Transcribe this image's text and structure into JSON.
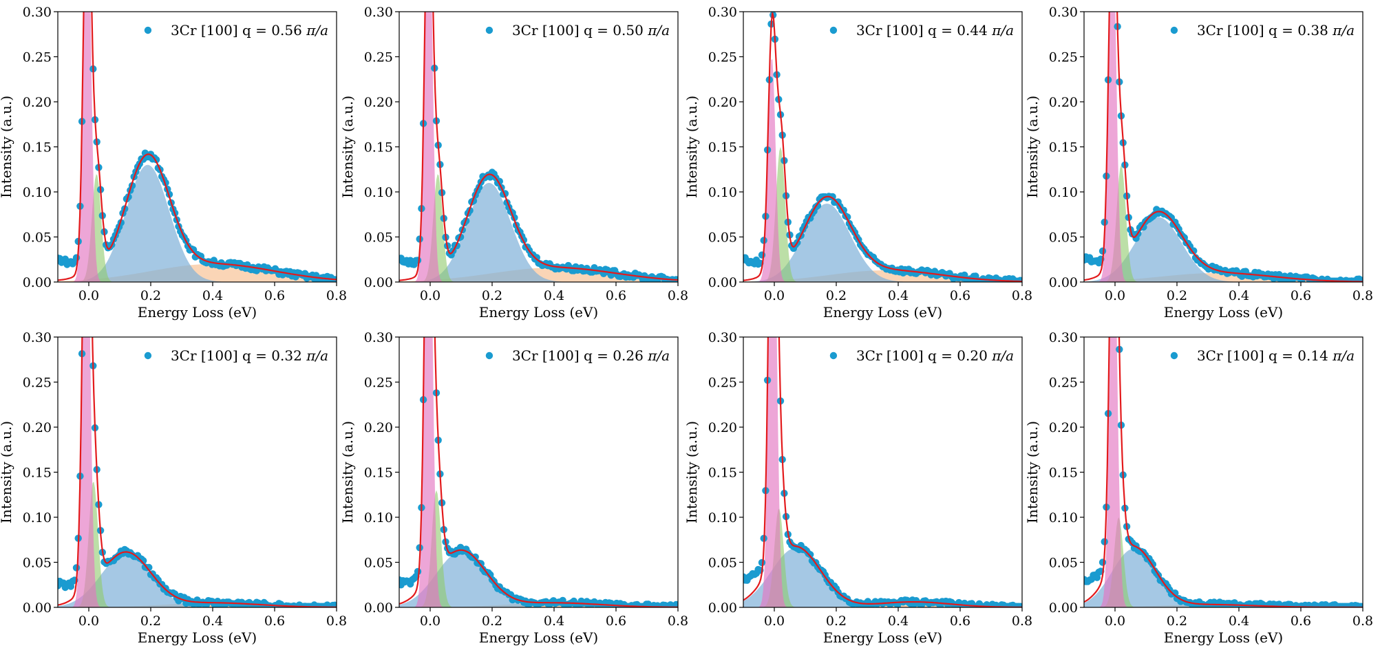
{
  "figure": {
    "xlabel": "Energy Loss (eV)",
    "ylabel": "Intensity (a.u.)",
    "xlim": [
      -0.1,
      0.8
    ],
    "ylim": [
      0.0,
      0.3
    ],
    "xticks": [
      "0.0",
      "0.2",
      "0.4",
      "0.6",
      "0.8"
    ],
    "yticks": [
      "0.00",
      "0.05",
      "0.10",
      "0.15",
      "0.20",
      "0.25",
      "0.30"
    ],
    "legend_placement": "top-right",
    "grid": false
  },
  "colors": {
    "data_points": "#1a9bd0",
    "fit_line": "#e31a1c",
    "component_elastic": "#e377c2",
    "component_phonon": "#8fca6d",
    "component_magnon": "#7fb0d8",
    "component_continuum": "#f5b27a"
  },
  "chart_data": [
    {
      "type": "scatter",
      "panel": 1,
      "legend": {
        "prefix": "3Cr [100] q = ",
        "value": "0.56",
        "unit": "π/a"
      },
      "peak": {
        "amplitude": 0.13,
        "center": 0.19,
        "width": 0.07,
        "height_at_peak": 0.143
      },
      "continuum": {
        "amplitude": 0.02,
        "center": 0.4,
        "width": 0.2
      },
      "elastic": {
        "amplitude": 0.45,
        "center": -0.005,
        "width": 0.012
      },
      "phonon": {
        "amplitude": 0.12,
        "center": 0.025,
        "width": 0.015
      }
    },
    {
      "type": "scatter",
      "panel": 2,
      "legend": {
        "prefix": "3Cr [100] q = ",
        "value": "0.50",
        "unit": "π/a"
      },
      "peak": {
        "amplitude": 0.11,
        "center": 0.19,
        "width": 0.07,
        "height_at_peak": 0.117
      },
      "continuum": {
        "amplitude": 0.016,
        "center": 0.4,
        "width": 0.2
      },
      "elastic": {
        "amplitude": 0.45,
        "center": -0.005,
        "width": 0.012
      },
      "phonon": {
        "amplitude": 0.12,
        "center": 0.025,
        "width": 0.015
      }
    },
    {
      "type": "scatter",
      "panel": 3,
      "legend": {
        "prefix": "3Cr [100] q = ",
        "value": "0.44",
        "unit": "π/a"
      },
      "peak": {
        "amplitude": 0.087,
        "center": 0.17,
        "width": 0.075,
        "height_at_peak": 0.097
      },
      "continuum": {
        "amplitude": 0.013,
        "center": 0.36,
        "width": 0.18
      },
      "elastic": {
        "amplitude": 0.25,
        "center": -0.008,
        "width": 0.012
      },
      "phonon": {
        "amplitude": 0.15,
        "center": 0.02,
        "width": 0.015
      }
    },
    {
      "type": "scatter",
      "panel": 4,
      "legend": {
        "prefix": "3Cr [100] q = ",
        "value": "0.38",
        "unit": "π/a"
      },
      "peak": {
        "amplitude": 0.072,
        "center": 0.14,
        "width": 0.075,
        "height_at_peak": 0.083
      },
      "continuum": {
        "amplitude": 0.01,
        "center": 0.33,
        "width": 0.18
      },
      "elastic": {
        "amplitude": 0.4,
        "center": -0.008,
        "width": 0.012
      },
      "phonon": {
        "amplitude": 0.13,
        "center": 0.02,
        "width": 0.015
      }
    },
    {
      "type": "scatter",
      "panel": 5,
      "legend": {
        "prefix": "3Cr [100] q = ",
        "value": "0.32",
        "unit": "π/a"
      },
      "peak": {
        "amplitude": 0.06,
        "center": 0.12,
        "width": 0.08,
        "height_at_peak": 0.066
      },
      "continuum": {
        "amplitude": 0.005,
        "center": 0.4,
        "width": 0.15
      },
      "elastic": {
        "amplitude": 0.5,
        "center": -0.008,
        "width": 0.012
      },
      "phonon": {
        "amplitude": 0.14,
        "center": 0.015,
        "width": 0.015
      }
    },
    {
      "type": "scatter",
      "panel": 6,
      "legend": {
        "prefix": "3Cr [100] q = ",
        "value": "0.26",
        "unit": "π/a"
      },
      "peak": {
        "amplitude": 0.062,
        "center": 0.1,
        "width": 0.08,
        "height_at_peak": 0.07
      },
      "continuum": {
        "amplitude": 0.005,
        "center": 0.4,
        "width": 0.15
      },
      "elastic": {
        "amplitude": 0.55,
        "center": -0.005,
        "width": 0.012
      },
      "phonon": {
        "amplitude": 0.13,
        "center": 0.02,
        "width": 0.015
      }
    },
    {
      "type": "scatter",
      "panel": 7,
      "legend": {
        "prefix": "3Cr [100] q = ",
        "value": "0.20",
        "unit": "π/a"
      },
      "peak": {
        "amplitude": 0.066,
        "center": 0.07,
        "width": 0.08,
        "height_at_peak": 0.075
      },
      "continuum": {
        "amplitude": 0.006,
        "center": 0.45,
        "width": 0.12
      },
      "elastic": {
        "amplitude": 0.55,
        "center": -0.005,
        "width": 0.012
      },
      "phonon": {
        "amplitude": 0.11,
        "center": 0.015,
        "width": 0.015
      }
    },
    {
      "type": "scatter",
      "panel": 8,
      "legend": {
        "prefix": "3Cr [100] q = ",
        "value": "0.14",
        "unit": "π/a"
      },
      "peak": {
        "amplitude": 0.065,
        "center": 0.06,
        "width": 0.07,
        "height_at_peak": 0.07
      },
      "continuum": {
        "amplitude": 0.003,
        "center": 0.3,
        "width": 0.15
      },
      "elastic": {
        "amplitude": 0.45,
        "center": -0.005,
        "width": 0.012
      },
      "phonon": {
        "amplitude": 0.1,
        "center": 0.012,
        "width": 0.015
      }
    }
  ]
}
